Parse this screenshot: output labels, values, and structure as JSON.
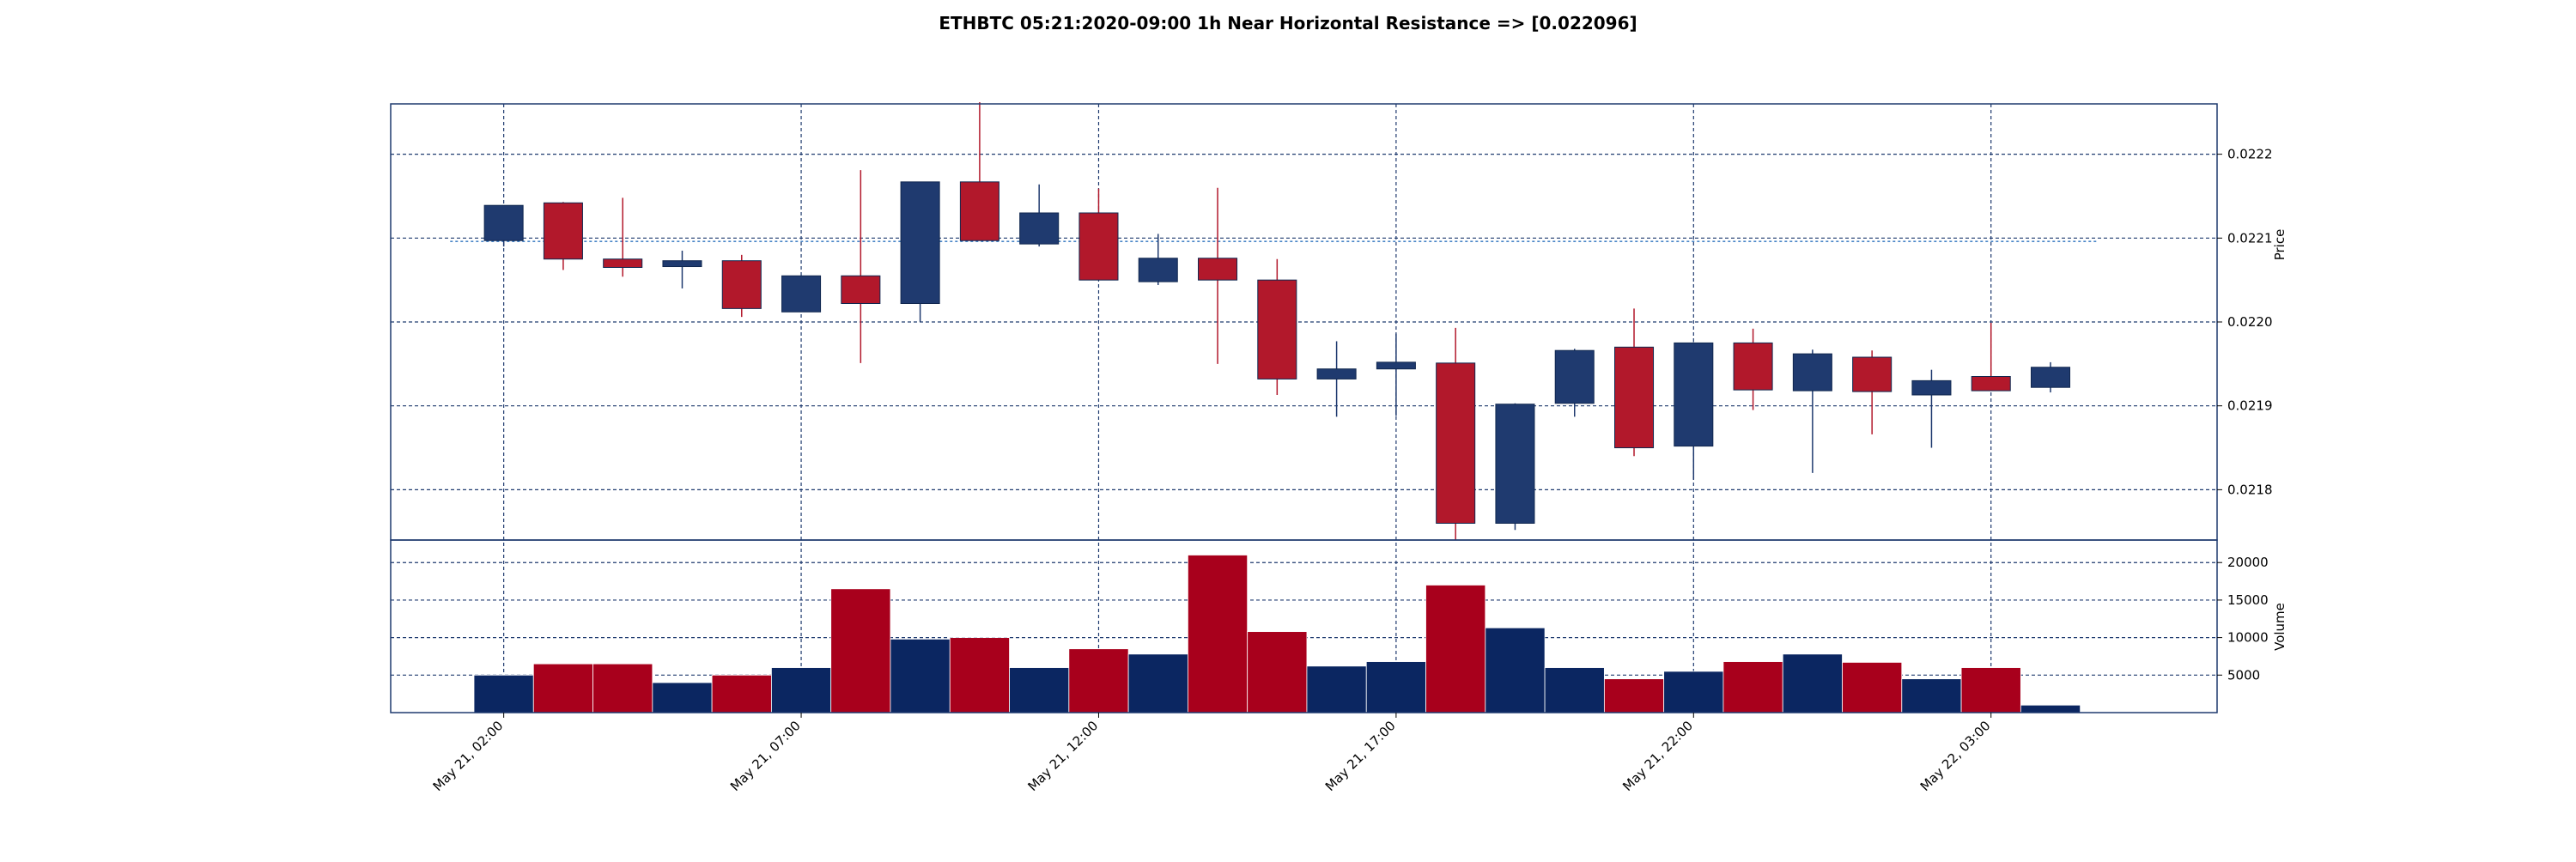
{
  "chart_data": {
    "type": "candlestick",
    "title": "ETHBTC 05:21:2020-09:00 1h Near Horizontal Resistance => [0.022096]",
    "price_ylabel": "Price",
    "volume_ylabel": "Volume",
    "resistance_level": 0.022096,
    "grid": true,
    "price_ylim": [
      0.02174,
      0.02226
    ],
    "volume_ylim": [
      0,
      23000
    ],
    "x_range": [
      -1.9,
      28.8
    ],
    "price_ticks": [
      {
        "value": 0.0218,
        "label": "0.0218"
      },
      {
        "value": 0.0219,
        "label": "0.0219"
      },
      {
        "value": 0.022,
        "label": "0.0220"
      },
      {
        "value": 0.0221,
        "label": "0.0221"
      },
      {
        "value": 0.0222,
        "label": "0.0222"
      }
    ],
    "volume_ticks": [
      {
        "value": 5000,
        "label": "5000"
      },
      {
        "value": 10000,
        "label": "10000"
      },
      {
        "value": 15000,
        "label": "15000"
      },
      {
        "value": 20000,
        "label": "20000"
      }
    ],
    "x_ticks": [
      {
        "index": 0,
        "label": "May 21, 02:00"
      },
      {
        "index": 5,
        "label": "May 21, 07:00"
      },
      {
        "index": 10,
        "label": "May 21, 12:00"
      },
      {
        "index": 15,
        "label": "May 21, 17:00"
      },
      {
        "index": 20,
        "label": "May 21, 22:00"
      },
      {
        "index": 25,
        "label": "May 22, 03:00"
      }
    ],
    "up_color": "#1f3a6f",
    "down_color": "#b2182b",
    "volume_up_color": "#0b2661",
    "volume_down_color": "#a8001c",
    "grid_color": "#1f3a6f",
    "resistance_color": "#4a86c8",
    "candles": [
      {
        "open": 0.022097,
        "high": 0.022138,
        "low": 0.02209,
        "close": 0.022139,
        "volume": 5000
      },
      {
        "open": 0.022142,
        "high": 0.022143,
        "low": 0.022062,
        "close": 0.022075,
        "volume": 6500
      },
      {
        "open": 0.022075,
        "high": 0.022148,
        "low": 0.022054,
        "close": 0.022065,
        "volume": 6500
      },
      {
        "open": 0.022066,
        "high": 0.022085,
        "low": 0.02204,
        "close": 0.022073,
        "volume": 4000
      },
      {
        "open": 0.022073,
        "high": 0.02208,
        "low": 0.022006,
        "close": 0.022016,
        "volume": 5000
      },
      {
        "open": 0.022012,
        "high": 0.022055,
        "low": 0.022012,
        "close": 0.022055,
        "volume": 6000
      },
      {
        "open": 0.022055,
        "high": 0.022181,
        "low": 0.021951,
        "close": 0.022022,
        "volume": 16500
      },
      {
        "open": 0.022022,
        "high": 0.022167,
        "low": 0.022,
        "close": 0.022167,
        "volume": 9800
      },
      {
        "open": 0.022167,
        "high": 0.022262,
        "low": 0.022097,
        "close": 0.022097,
        "volume": 10000
      },
      {
        "open": 0.022093,
        "high": 0.022164,
        "low": 0.02209,
        "close": 0.02213,
        "volume": 6000
      },
      {
        "open": 0.02213,
        "high": 0.022159,
        "low": 0.02205,
        "close": 0.02205,
        "volume": 8500
      },
      {
        "open": 0.022048,
        "high": 0.022105,
        "low": 0.022044,
        "close": 0.022076,
        "volume": 7800
      },
      {
        "open": 0.022076,
        "high": 0.02216,
        "low": 0.02195,
        "close": 0.02205,
        "volume": 21000
      },
      {
        "open": 0.02205,
        "high": 0.022075,
        "low": 0.021913,
        "close": 0.021932,
        "volume": 10800
      },
      {
        "open": 0.021932,
        "high": 0.021977,
        "low": 0.021887,
        "close": 0.021944,
        "volume": 6200
      },
      {
        "open": 0.021944,
        "high": 0.021986,
        "low": 0.021888,
        "close": 0.021952,
        "volume": 6800
      },
      {
        "open": 0.021951,
        "high": 0.021993,
        "low": 0.02174,
        "close": 0.02176,
        "volume": 17000
      },
      {
        "open": 0.02176,
        "high": 0.021903,
        "low": 0.021752,
        "close": 0.021902,
        "volume": 11300
      },
      {
        "open": 0.021903,
        "high": 0.021968,
        "low": 0.021887,
        "close": 0.021966,
        "volume": 6000
      },
      {
        "open": 0.02197,
        "high": 0.022016,
        "low": 0.02184,
        "close": 0.02185,
        "volume": 4500
      },
      {
        "open": 0.021852,
        "high": 0.021976,
        "low": 0.021812,
        "close": 0.021975,
        "volume": 5500
      },
      {
        "open": 0.021975,
        "high": 0.021992,
        "low": 0.021895,
        "close": 0.021919,
        "volume": 6800
      },
      {
        "open": 0.021918,
        "high": 0.021967,
        "low": 0.02182,
        "close": 0.021962,
        "volume": 7800
      },
      {
        "open": 0.021958,
        "high": 0.021966,
        "low": 0.021866,
        "close": 0.021917,
        "volume": 6700
      },
      {
        "open": 0.021913,
        "high": 0.021943,
        "low": 0.02185,
        "close": 0.02193,
        "volume": 4500
      },
      {
        "open": 0.021935,
        "high": 0.021999,
        "low": 0.02192,
        "close": 0.021918,
        "volume": 6000
      },
      {
        "open": 0.021922,
        "high": 0.021952,
        "low": 0.021916,
        "close": 0.021946,
        "volume": 1000
      }
    ]
  }
}
